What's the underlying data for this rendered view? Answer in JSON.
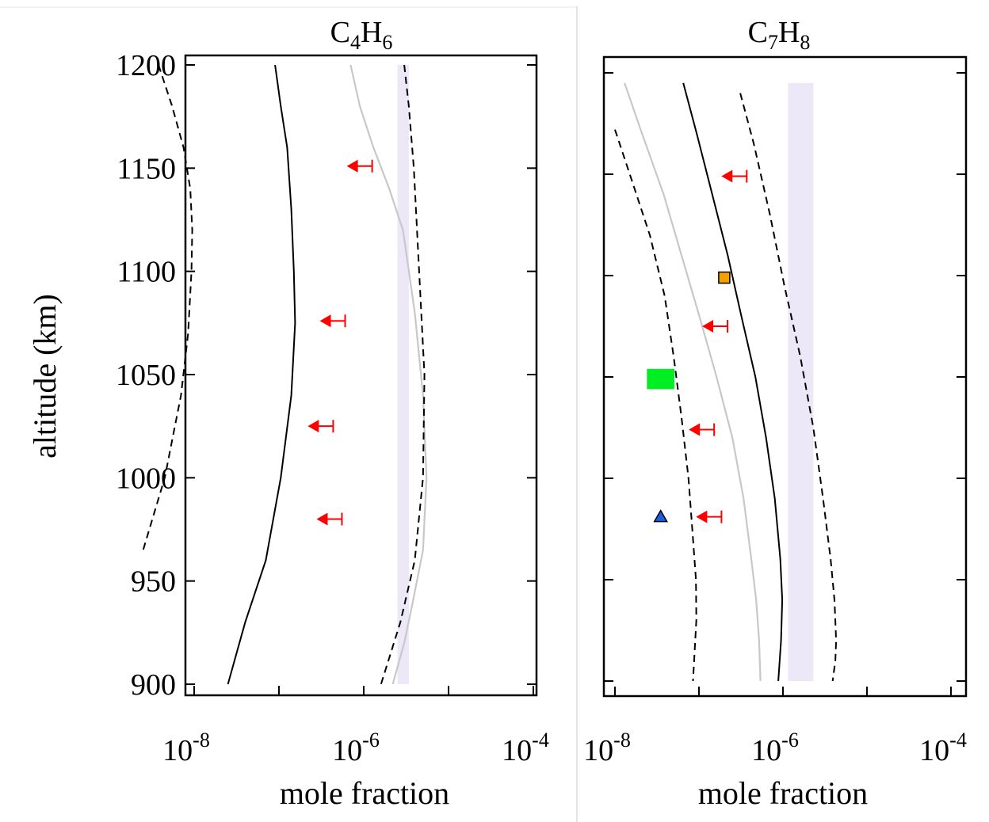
{
  "chart_data": [
    {
      "type": "line",
      "title": "C4H6",
      "title_parts": {
        "a": "C",
        "a_sub": "4",
        "b": "H",
        "b_sub": "6"
      },
      "xlabel": "mole fraction",
      "ylabel": "altitude (km)",
      "x_scale": "log",
      "xlim": [
        1e-09,
        0.0001
      ],
      "ylim": [
        900,
        1200
      ],
      "x_ticks": [
        {
          "base": "10",
          "exp": "-8"
        },
        {
          "base": "10",
          "exp": "-6"
        },
        {
          "base": "10",
          "exp": "-4"
        }
      ],
      "y_ticks": [
        "1200",
        "1150",
        "1100",
        "1050",
        "1000",
        "950",
        "900"
      ],
      "grid": false,
      "shaded_band": {
        "x_range": [
          2.5e-06,
          3.4e-06
        ],
        "y_range": [
          900,
          1200
        ],
        "color": "#ece8f8"
      },
      "series": [
        {
          "style": "dashed",
          "color": "#000000",
          "x": [
            3.8e-09,
            5.5e-09,
            7.5e-09,
            9e-09,
            9.5e-09,
            9.3e-09,
            8.5e-09,
            7e-09,
            4.5e-09,
            2.5e-09
          ],
          "y": [
            1200,
            1180,
            1160,
            1140,
            1120,
            1100,
            1070,
            1040,
            1000,
            965
          ]
        },
        {
          "style": "solid",
          "color": "#000000",
          "x": [
            9e-08,
            1.05e-07,
            1.25e-07,
            1.4e-07,
            1.5e-07,
            1.55e-07,
            1.4e-07,
            1.05e-07,
            7e-08,
            4e-08,
            2.5e-08
          ],
          "y": [
            1200,
            1180,
            1160,
            1130,
            1100,
            1075,
            1040,
            1000,
            960,
            930,
            900
          ]
        },
        {
          "style": "solid",
          "color": "#c8c8c8",
          "x": [
            7e-07,
            9e-07,
            1.3e-06,
            2e-06,
            2.9e-06,
            4e-06,
            5e-06,
            5.5e-06,
            5e-06,
            3.8e-06,
            3e-06,
            2.2e-06
          ],
          "y": [
            1200,
            1180,
            1160,
            1140,
            1120,
            1080,
            1040,
            1000,
            965,
            940,
            920,
            900
          ]
        },
        {
          "style": "dashed",
          "color": "#000000",
          "x": [
            3e-06,
            3.4e-06,
            3.9e-06,
            4.5e-06,
            5.2e-06,
            5e-06,
            4e-06,
            2.7e-06,
            1.6e-06
          ],
          "y": [
            1200,
            1180,
            1150,
            1100,
            1050,
            1000,
            960,
            930,
            900
          ]
        }
      ],
      "upper_limits": [
        {
          "x": 7.5e-07,
          "y": 1151,
          "color": "#ff0000"
        },
        {
          "x": 3.6e-07,
          "y": 1076,
          "color": "#ff0000"
        },
        {
          "x": 2.6e-07,
          "y": 1025,
          "color": "#ff0000"
        },
        {
          "x": 3.3e-07,
          "y": 980,
          "color": "#ff0000"
        }
      ],
      "markers": []
    },
    {
      "type": "line",
      "title": "C7H8",
      "title_parts": {
        "a": "C",
        "a_sub": "7",
        "b": "H",
        "b_sub": "8"
      },
      "xlabel": "mole fraction",
      "ylabel": "",
      "x_scale": "log",
      "xlim": [
        1e-09,
        0.0001
      ],
      "ylim": [
        900,
        1200
      ],
      "x_ticks": [
        {
          "base": "10",
          "exp": "-8"
        },
        {
          "base": "10",
          "exp": "-6"
        },
        {
          "base": "10",
          "exp": "-4"
        }
      ],
      "y_ticks": [],
      "grid": false,
      "shaded_band": {
        "x_range": [
          1.15e-06,
          2.3e-06
        ],
        "y_range": [
          900,
          1195
        ],
        "color": "#ece8f8"
      },
      "series": [
        {
          "style": "dashed",
          "color": "#000000",
          "x": [
            1e-08,
            1.5e-08,
            2.6e-08,
            3.9e-08,
            5e-08,
            6.2e-08,
            7.5e-08,
            8.5e-08,
            9.2e-08,
            9.3e-08,
            8.5e-08
          ],
          "y": [
            1172,
            1150,
            1120,
            1090,
            1060,
            1030,
            1000,
            970,
            950,
            930,
            900
          ]
        },
        {
          "style": "solid",
          "color": "#c8c8c8",
          "x": [
            1.3e-08,
            2.1e-08,
            3.8e-08,
            6.2e-08,
            1.01e-07,
            1.62e-07,
            2.5e-07,
            3.4e-07,
            4.2e-07,
            4.8e-07,
            5.2e-07,
            5.4e-07
          ],
          "y": [
            1195,
            1170,
            1140,
            1110,
            1080,
            1050,
            1020,
            990,
            960,
            940,
            920,
            900
          ]
        },
        {
          "style": "solid",
          "color": "#000000",
          "x": [
            6.5e-08,
            9.4e-08,
            1.44e-07,
            2.2e-07,
            3.2e-07,
            4.7e-07,
            6.3e-07,
            8e-07,
            9.3e-07,
            9.8e-07,
            9.5e-07,
            8.8e-07
          ],
          "y": [
            1195,
            1170,
            1140,
            1110,
            1080,
            1050,
            1020,
            990,
            960,
            940,
            920,
            900
          ]
        },
        {
          "style": "dashed",
          "color": "#000000",
          "x": [
            3.1e-07,
            4.5e-07,
            7e-07,
            1.04e-06,
            1.61e-06,
            2.3e-06,
            3e-06,
            3.7e-06,
            4.1e-06,
            4.3e-06,
            4.2e-06,
            3.9e-06
          ],
          "y": [
            1190,
            1165,
            1130,
            1095,
            1060,
            1025,
            990,
            960,
            940,
            920,
            910,
            900
          ]
        }
      ],
      "upper_limits": [
        {
          "x": 2.2e-07,
          "y": 1149,
          "color": "#ff0000"
        },
        {
          "x": 1.3e-07,
          "y": 1075,
          "color": "#ff0000"
        },
        {
          "x": 9e-08,
          "y": 1024,
          "color": "#ff0000"
        },
        {
          "x": 1.1e-07,
          "y": 981,
          "color": "#ff0000"
        }
      ],
      "markers": [
        {
          "shape": "square",
          "x": 2e-07,
          "y": 1099,
          "color": "#f5a000"
        },
        {
          "shape": "rect",
          "x": [
            2.4e-08,
            5.1e-08
          ],
          "y": [
            1044,
            1054
          ],
          "color": "#00ee22"
        },
        {
          "shape": "triangle",
          "x": 3.5e-08,
          "y": 981,
          "color": "#1a5fe0"
        }
      ]
    }
  ]
}
